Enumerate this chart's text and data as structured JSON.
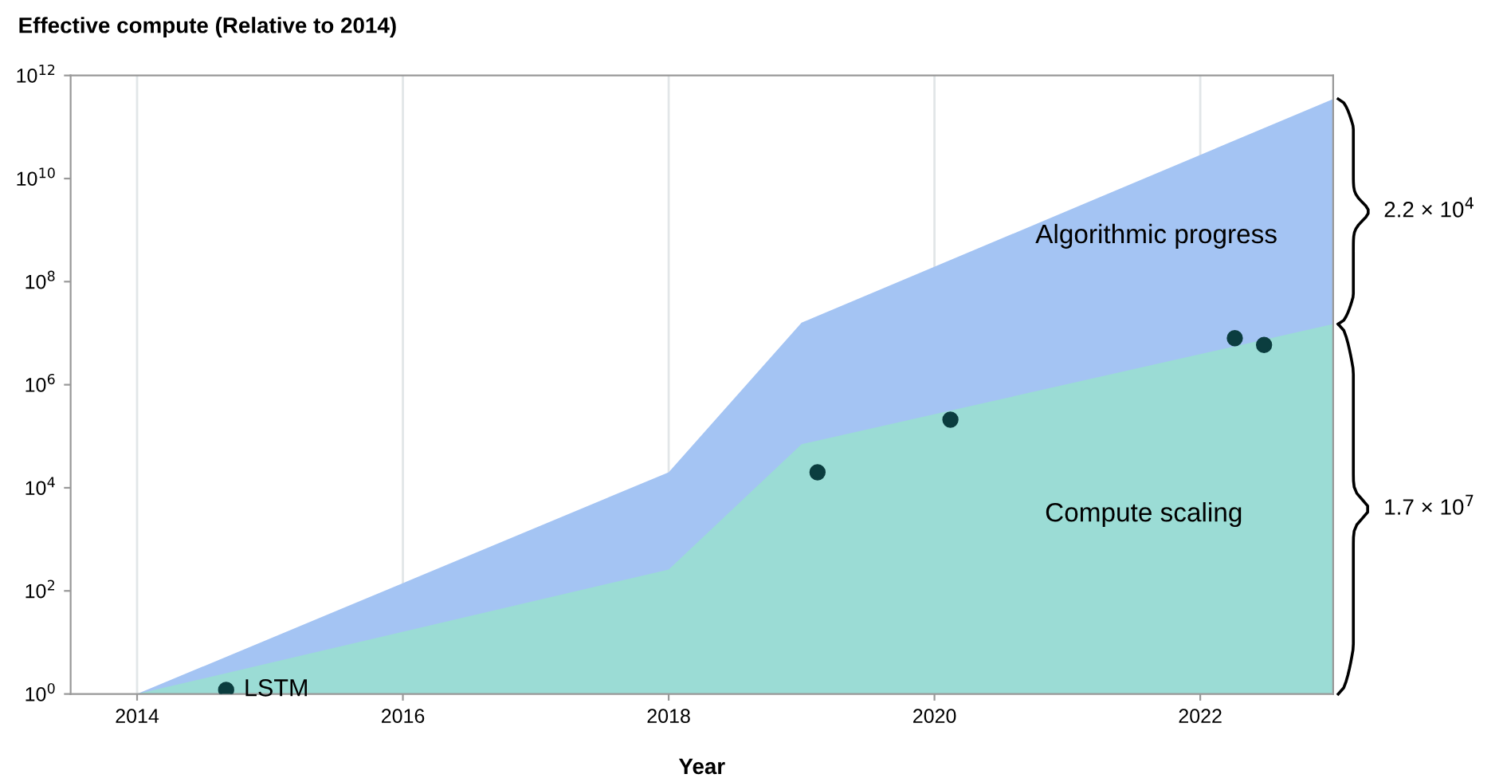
{
  "chart_data": {
    "type": "area",
    "ylabel": "Effective compute (Relative to 2014)",
    "xlabel": "Year",
    "series": [
      {
        "color": "#a4c4f3",
        "x": [
          2014,
          2018,
          2019,
          2023
        ],
        "values": [
          1,
          20000,
          16000000,
          350000000000
        ]
      },
      {
        "color": "#9bdcd5",
        "x": [
          2014,
          2018,
          2019,
          2023
        ],
        "values": [
          1,
          260,
          70000,
          15000000
        ]
      },
      {
        "type": "scatter",
        "color": "#0b3d3f",
        "x": [
          2014.67,
          2019.12,
          2020.12,
          2022.26,
          2022.48
        ],
        "values": [
          1.2,
          20000,
          210000,
          8000000,
          5900000
        ],
        "value_labels": [
          "LSTM",
          null,
          null,
          null,
          null
        ],
        "marker": "circle"
      }
    ],
    "annotations": [
      "Algorithmic progress",
      "Compute scaling",
      "2.2 × 10$^{4}$",
      "1.7 × 10$^{7}$"
    ],
    "log": "y",
    "xlim": [
      2013.5,
      2023.0
    ],
    "ylim": [
      1,
      1000000000000
    ],
    "xticks": [
      2014,
      2016,
      2018,
      2020,
      2022
    ],
    "yticks": [
      {
        "value": 1,
        "label": "10$^{0}$"
      },
      {
        "value": 100,
        "label": "10$^{2}$"
      },
      {
        "value": 10000,
        "label": "10$^{4}$"
      },
      {
        "value": 1000000,
        "label": "10$^{6}$"
      },
      {
        "value": 100000000,
        "label": "10$^{8}$"
      },
      {
        "value": 10000000000,
        "label": "10$^{10}$"
      },
      {
        "value": 1000000000000,
        "label": "10$^{12}$"
      }
    ],
    "grid": "x",
    "legend": false
  }
}
